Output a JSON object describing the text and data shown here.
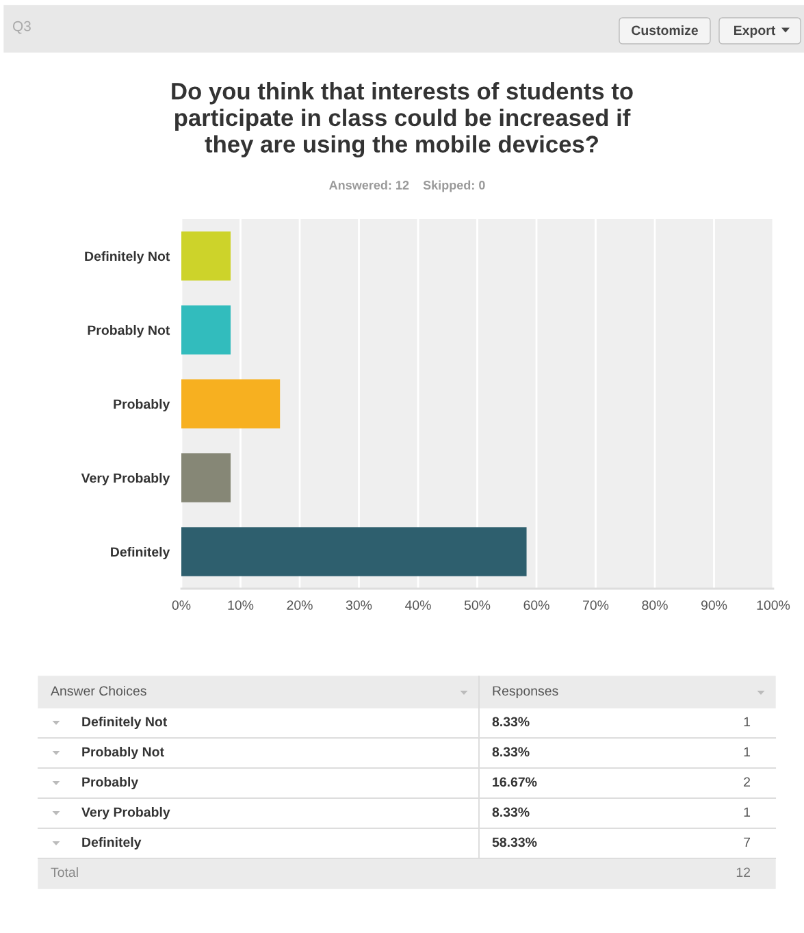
{
  "chart_data": {
    "type": "bar",
    "orientation": "horizontal",
    "title": "Do you think that interests of students to\nparticipate in class could be increased if\nthey are using the mobile devices?",
    "subtitle": "Answered: 12    Skipped: 0",
    "categories": [
      "Definitely Not",
      "Probably Not",
      "Probably",
      "Very Probably",
      "Definitely"
    ],
    "values": [
      8.33,
      8.33,
      16.67,
      8.33,
      58.33
    ],
    "colors": [
      "#cdd32a",
      "#32bcbd",
      "#f7b020",
      "#868776",
      "#2e5f6e"
    ],
    "xlim": [
      0,
      100
    ],
    "xticks": [
      {
        "value": 0,
        "label": "0%"
      },
      {
        "value": 10,
        "label": "10%"
      },
      {
        "value": 20,
        "label": "20%"
      },
      {
        "value": 30,
        "label": "30%"
      },
      {
        "value": 40,
        "label": "40%"
      },
      {
        "value": 50,
        "label": "50%"
      },
      {
        "value": 60,
        "label": "60%"
      },
      {
        "value": 70,
        "label": "70%"
      },
      {
        "value": 80,
        "label": "80%"
      },
      {
        "value": 90,
        "label": "90%"
      },
      {
        "value": 100,
        "label": "100%"
      }
    ],
    "grid": "x",
    "annotations": [
      "Q3",
      "Customize",
      "Export",
      "Answer Choices",
      "Responses",
      "Total",
      "12",
      "1",
      "1",
      "2",
      "1",
      "7",
      "8.33%",
      "8.33%",
      "16.67%",
      "8.33%",
      "58.33%"
    ]
  }
}
